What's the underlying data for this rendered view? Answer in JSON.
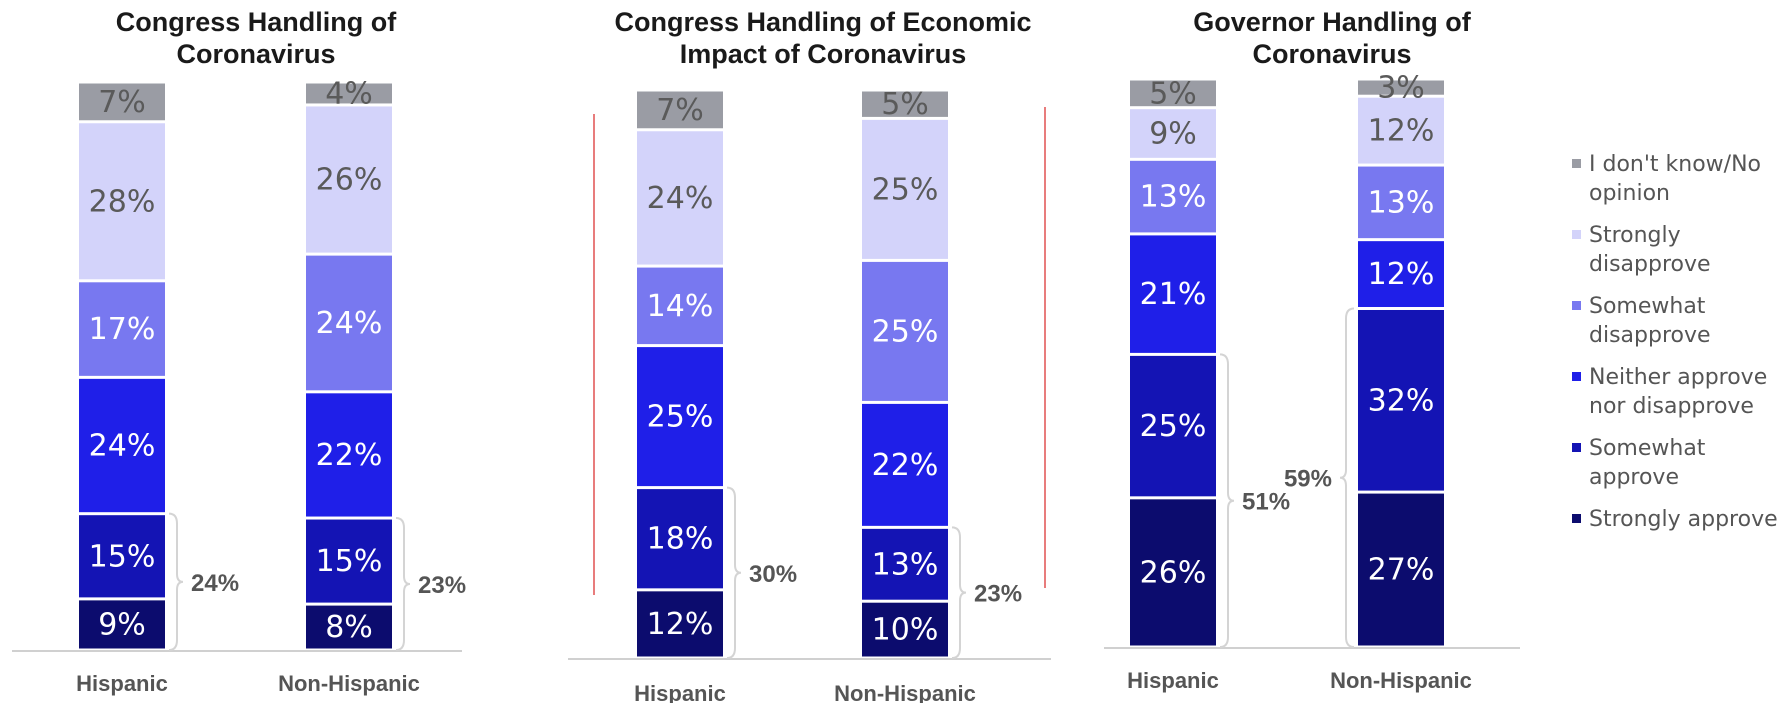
{
  "legend": {
    "items": [
      {
        "label_lines": [
          "I don't know/No",
          "opinion"
        ],
        "color": "#9a9ca4"
      },
      {
        "label_lines": [
          "Strongly",
          "disapprove"
        ],
        "color": "#d3d3fa"
      },
      {
        "label_lines": [
          "Somewhat",
          "disapprove"
        ],
        "color": "#7878f0"
      },
      {
        "label_lines": [
          "Neither approve",
          "nor disapprove"
        ],
        "color": "#1f1fe8"
      },
      {
        "label_lines": [
          "Somewhat",
          "approve"
        ],
        "color": "#1414b4"
      },
      {
        "label_lines": [
          "Strongly approve"
        ],
        "color": "#0c0c6e"
      }
    ]
  },
  "chart_data": [
    {
      "type": "bar",
      "stacked": true,
      "title": "Congress Handling of Coronavirus",
      "title_lines": [
        "Congress Handling of",
        "Coronavirus"
      ],
      "categories": [
        "Hispanic",
        "Non-Hispanic"
      ],
      "series": [
        {
          "name": "Strongly approve",
          "values": [
            9,
            8
          ]
        },
        {
          "name": "Somewhat approve",
          "values": [
            15,
            15
          ]
        },
        {
          "name": "Neither approve nor disapprove",
          "values": [
            24,
            22
          ]
        },
        {
          "name": "Somewhat disapprove",
          "values": [
            17,
            24
          ]
        },
        {
          "name": "Strongly disapprove",
          "values": [
            28,
            26
          ]
        },
        {
          "name": "I don't know/No opinion",
          "values": [
            7,
            4
          ]
        }
      ],
      "brackets": [
        {
          "category": "Hispanic",
          "label": "24%",
          "series": [
            "Strongly approve",
            "Somewhat approve"
          ]
        },
        {
          "category": "Non-Hispanic",
          "label": "23%",
          "series": [
            "Strongly approve",
            "Somewhat approve"
          ]
        }
      ]
    },
    {
      "type": "bar",
      "stacked": true,
      "title": "Congress Handling of Economic Impact of Coronavirus",
      "title_lines": [
        "Congress Handling of Economic",
        "Impact of Coronavirus"
      ],
      "categories": [
        "Hispanic",
        "Non-Hispanic"
      ],
      "series": [
        {
          "name": "Strongly approve",
          "values": [
            12,
            10
          ]
        },
        {
          "name": "Somewhat approve",
          "values": [
            18,
            13
          ]
        },
        {
          "name": "Neither approve nor disapprove",
          "values": [
            25,
            22
          ]
        },
        {
          "name": "Somewhat disapprove",
          "values": [
            14,
            25
          ]
        },
        {
          "name": "Strongly disapprove",
          "values": [
            24,
            25
          ]
        },
        {
          "name": "I don't know/No opinion",
          "values": [
            7,
            5
          ]
        }
      ],
      "brackets": [
        {
          "category": "Hispanic",
          "label": "30%",
          "series": [
            "Strongly approve",
            "Somewhat approve"
          ]
        },
        {
          "category": "Non-Hispanic",
          "label": "23%",
          "series": [
            "Strongly approve",
            "Somewhat approve"
          ]
        }
      ]
    },
    {
      "type": "bar",
      "stacked": true,
      "title": "Governor Handling of Coronavirus",
      "title_lines": [
        "Governor Handling of",
        "Coronavirus"
      ],
      "categories": [
        "Hispanic",
        "Non-Hispanic"
      ],
      "series": [
        {
          "name": "Strongly approve",
          "values": [
            26,
            27
          ]
        },
        {
          "name": "Somewhat approve",
          "values": [
            25,
            32
          ]
        },
        {
          "name": "Neither approve nor disapprove",
          "values": [
            21,
            12
          ]
        },
        {
          "name": "Somewhat disapprove",
          "values": [
            13,
            13
          ]
        },
        {
          "name": "Strongly disapprove",
          "values": [
            9,
            12
          ]
        },
        {
          "name": "I don't know/No opinion",
          "values": [
            5,
            3
          ]
        }
      ],
      "brackets": [
        {
          "category": "Hispanic",
          "label": "51%",
          "series": [
            "Strongly approve",
            "Somewhat approve"
          ]
        },
        {
          "category": "Non-Hispanic",
          "label": "59%",
          "series": [
            "Strongly approve",
            "Somewhat approve"
          ]
        }
      ]
    }
  ]
}
